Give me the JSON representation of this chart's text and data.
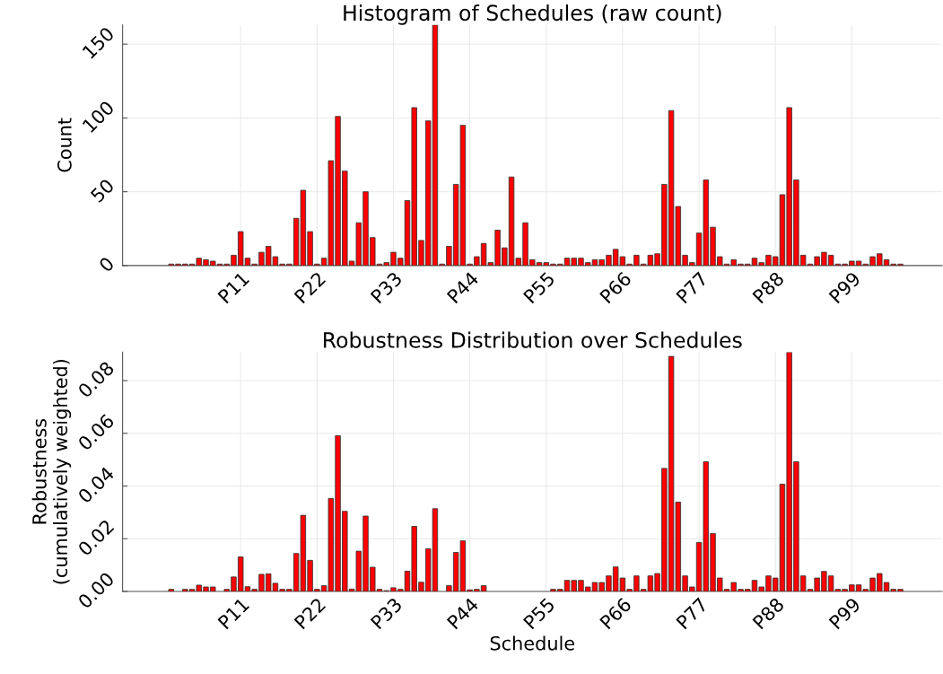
{
  "chart_data": [
    {
      "type": "bar",
      "title": "Histogram of Schedules (raw count)",
      "ylabel": "Count",
      "categories": [
        null,
        null,
        null,
        null,
        null,
        null,
        null,
        null,
        null,
        null,
        null,
        null,
        null,
        null,
        null,
        null,
        "P11",
        null,
        null,
        null,
        null,
        null,
        null,
        null,
        null,
        null,
        null,
        "P22",
        null,
        null,
        null,
        null,
        null,
        null,
        null,
        null,
        null,
        null,
        "P33",
        null,
        null,
        null,
        null,
        null,
        null,
        null,
        null,
        null,
        null,
        "P44",
        null,
        null,
        null,
        null,
        null,
        null,
        null,
        null,
        null,
        null,
        "P55",
        null,
        null,
        null,
        null,
        null,
        null,
        null,
        null,
        null,
        null,
        "P66",
        null,
        null,
        null,
        null,
        null,
        null,
        null,
        null,
        null,
        null,
        "P77",
        null,
        null,
        null,
        null,
        null,
        null,
        null,
        null,
        null,
        null,
        "P88",
        null,
        null,
        null,
        null,
        null,
        null,
        null,
        null,
        null,
        null,
        "P99",
        null,
        null,
        null,
        null,
        null,
        null,
        null,
        null,
        null,
        null,
        null,
        null
      ],
      "values": [
        null,
        null,
        null,
        null,
        null,
        null,
        1,
        1,
        1,
        1,
        5,
        4,
        3,
        1,
        1,
        7,
        23,
        5,
        1,
        9,
        13,
        6,
        1,
        1,
        32,
        51,
        23,
        1,
        5,
        71,
        101,
        64,
        3,
        29,
        50,
        19,
        1,
        2,
        9,
        5,
        44,
        107,
        17,
        98,
        163,
        1,
        13,
        55,
        95,
        1,
        6,
        15,
        2,
        24,
        12,
        60,
        5,
        29,
        4,
        2,
        2,
        1,
        1,
        5,
        5,
        5,
        2,
        4,
        4,
        7,
        11,
        6,
        1,
        7,
        1,
        7,
        8,
        55,
        105,
        40,
        7,
        2,
        22,
        58,
        26,
        6,
        1,
        4,
        1,
        1,
        5,
        2,
        7,
        6,
        48,
        107,
        58,
        7,
        1,
        6,
        9,
        7,
        1,
        1,
        3,
        3,
        1,
        6,
        8,
        4,
        1,
        1,
        null,
        null,
        null,
        null,
        null
      ],
      "color": "#ff0000",
      "ylim": [
        0,
        163
      ],
      "yticks": [
        0,
        50,
        100,
        150
      ],
      "grid": true
    },
    {
      "type": "bar",
      "title": "Robustness Distribution over Schedules",
      "xlabel": "Schedule",
      "ylabel": "Robustness\n(cumulatively weighted)",
      "categories": [
        null,
        null,
        null,
        null,
        null,
        null,
        null,
        null,
        null,
        null,
        null,
        null,
        null,
        null,
        null,
        null,
        "P11",
        null,
        null,
        null,
        null,
        null,
        null,
        null,
        null,
        null,
        null,
        "P22",
        null,
        null,
        null,
        null,
        null,
        null,
        null,
        null,
        null,
        null,
        "P33",
        null,
        null,
        null,
        null,
        null,
        null,
        null,
        null,
        null,
        null,
        "P44",
        null,
        null,
        null,
        null,
        null,
        null,
        null,
        null,
        null,
        null,
        "P55",
        null,
        null,
        null,
        null,
        null,
        null,
        null,
        null,
        null,
        null,
        "P66",
        null,
        null,
        null,
        null,
        null,
        null,
        null,
        null,
        null,
        null,
        "P77",
        null,
        null,
        null,
        null,
        null,
        null,
        null,
        null,
        null,
        null,
        "P88",
        null,
        null,
        null,
        null,
        null,
        null,
        null,
        null,
        null,
        null,
        "P99",
        null,
        null,
        null,
        null,
        null,
        null,
        null,
        null,
        null,
        null,
        null,
        null
      ],
      "values": [
        null,
        null,
        null,
        null,
        null,
        null,
        0.0008,
        0,
        0.0008,
        0.0008,
        0.0024,
        0.0017,
        0.0017,
        0,
        0.0008,
        0.0055,
        0.0131,
        0.0018,
        0.0008,
        0.0065,
        0.0067,
        0.0031,
        0.0008,
        0.0008,
        0.0144,
        0.0289,
        0.0118,
        0.0008,
        0.0022,
        0.0353,
        0.0591,
        0.0304,
        0.0009,
        0.0153,
        0.0286,
        0.0092,
        0.0008,
        0.0003,
        0.0014,
        0.0008,
        0.0077,
        0.0247,
        0.0035,
        0.0162,
        0.0314,
        0,
        0.0022,
        0.0148,
        0.0192,
        0.0006,
        0.0008,
        0.0022,
        0,
        0,
        0,
        0,
        0,
        0,
        0,
        0,
        0,
        0.0008,
        0.0008,
        0.0042,
        0.0042,
        0.0042,
        0.0017,
        0.0034,
        0.0034,
        0.0059,
        0.0093,
        0.0051,
        0.0008,
        0.0059,
        0.0008,
        0.0059,
        0.0068,
        0.0467,
        0.0892,
        0.0339,
        0.0059,
        0.0017,
        0.0186,
        0.0492,
        0.022,
        0.0051,
        0.0008,
        0.0034,
        0.0008,
        0.0008,
        0.0042,
        0.0017,
        0.0059,
        0.0051,
        0.0407,
        0.0908,
        0.0492,
        0.0059,
        0.0008,
        0.0051,
        0.0076,
        0.0059,
        0.0008,
        0.0008,
        0.0025,
        0.0025,
        0.0008,
        0.0051,
        0.0068,
        0.0034,
        0.0008,
        0.0008,
        null,
        null,
        null,
        null,
        null
      ],
      "color": "#ff0000",
      "ylim": [
        0,
        0.0908
      ],
      "yticks": [
        {
          "value": 0,
          "label": "0.00"
        },
        {
          "value": 0.02,
          "label": "0.02"
        },
        {
          "value": 0.04,
          "label": "0.04"
        },
        {
          "value": 0.06,
          "label": "0.06"
        },
        {
          "value": 0.08,
          "label": "0.08"
        }
      ],
      "grid": true
    }
  ]
}
